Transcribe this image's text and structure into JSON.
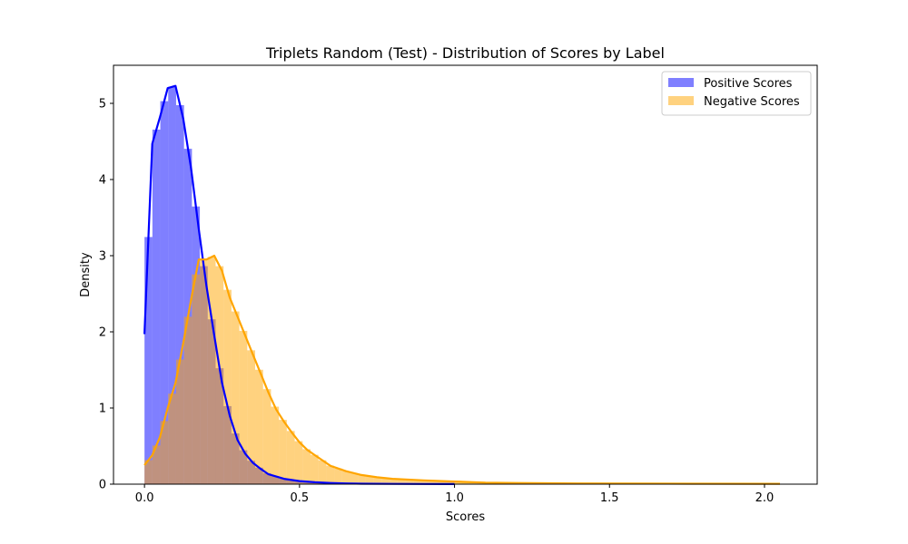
{
  "chart_data": {
    "type": "histogram",
    "title": "Triplets Random (Test) - Distribution of Scores by Label",
    "xlabel": "Scores",
    "ylabel": "Density",
    "xlim": [
      -0.1,
      2.17
    ],
    "ylim": [
      0,
      5.5
    ],
    "xticks": [
      0.0,
      0.5,
      1.0,
      1.5,
      2.0
    ],
    "xtick_labels": [
      "0.0",
      "0.5",
      "1.0",
      "1.5",
      "2.0"
    ],
    "yticks": [
      0,
      1,
      2,
      3,
      4,
      5
    ],
    "ytick_labels": [
      "0",
      "1",
      "2",
      "3",
      "4",
      "5"
    ],
    "grid": false,
    "legend_position": "top-right",
    "bin_width": 0.0255,
    "series": [
      {
        "name": "Positive Scores",
        "color": "#0000ff",
        "fill_alpha": 0.5,
        "kde": true,
        "x": [
          0.0,
          0.025,
          0.05,
          0.075,
          0.1,
          0.125,
          0.15,
          0.175,
          0.2,
          0.225,
          0.25,
          0.275,
          0.3,
          0.325,
          0.35,
          0.375,
          0.4,
          0.45,
          0.5,
          0.55,
          0.6,
          0.65,
          0.7,
          0.8,
          0.9,
          1.0
        ],
        "density": [
          1.97,
          4.47,
          4.82,
          5.2,
          5.23,
          4.8,
          4.15,
          3.35,
          2.6,
          1.95,
          1.33,
          0.9,
          0.58,
          0.4,
          0.28,
          0.2,
          0.13,
          0.07,
          0.04,
          0.025,
          0.015,
          0.01,
          0.006,
          0.003,
          0.002,
          0.001
        ]
      },
      {
        "name": "Negative Scores",
        "color": "#ffa500",
        "fill_alpha": 0.5,
        "kde": true,
        "x": [
          0.0,
          0.025,
          0.05,
          0.075,
          0.1,
          0.125,
          0.15,
          0.175,
          0.2,
          0.225,
          0.25,
          0.275,
          0.3,
          0.325,
          0.35,
          0.375,
          0.4,
          0.425,
          0.45,
          0.475,
          0.5,
          0.525,
          0.55,
          0.6,
          0.65,
          0.7,
          0.75,
          0.8,
          0.9,
          1.0,
          1.1,
          1.2,
          1.4,
          1.6,
          1.8,
          2.05
        ],
        "density": [
          0.25,
          0.38,
          0.62,
          1.0,
          1.33,
          1.85,
          2.42,
          2.95,
          2.95,
          3.0,
          2.8,
          2.45,
          2.2,
          1.95,
          1.7,
          1.45,
          1.2,
          0.98,
          0.82,
          0.68,
          0.55,
          0.45,
          0.38,
          0.24,
          0.17,
          0.12,
          0.09,
          0.07,
          0.05,
          0.035,
          0.02,
          0.015,
          0.01,
          0.008,
          0.006,
          0.005
        ]
      }
    ]
  }
}
